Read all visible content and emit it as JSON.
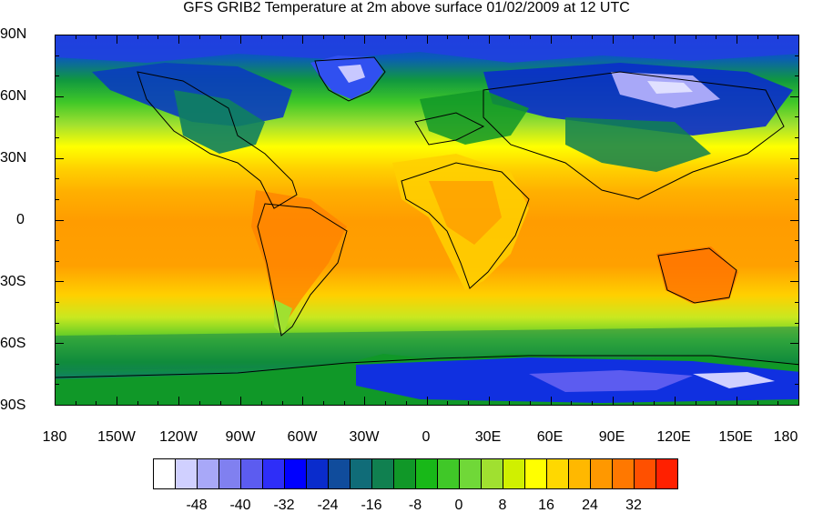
{
  "title": "GFS GRIB2 Temperature at 2m above surface 01/02/2009 at 12 UTC",
  "map": {
    "projection": "cylindrical-equidistant",
    "variable": "Temperature at 2m above surface",
    "lat_labels": [
      "90N",
      "60N",
      "30N",
      "0",
      "30S",
      "60S",
      "90S"
    ],
    "lon_labels": [
      "180",
      "150W",
      "120W",
      "90W",
      "60W",
      "30W",
      "0",
      "30E",
      "60E",
      "90E",
      "120E",
      "150E",
      "180"
    ]
  },
  "colorbar": {
    "colors": [
      "#ffffff",
      "#d0d0ff",
      "#a8a8f8",
      "#8080f0",
      "#5c5cf0",
      "#2e2ef8",
      "#0000ff",
      "#0a2ccc",
      "#104c9c",
      "#106c78",
      "#108050",
      "#109828",
      "#18b818",
      "#40c828",
      "#70d838",
      "#a0e030",
      "#d0f000",
      "#ffff00",
      "#ffd800",
      "#ffb800",
      "#ff9800",
      "#ff7800",
      "#ff5000",
      "#ff2000"
    ],
    "labels": [
      "-48",
      "-40",
      "-32",
      "-24",
      "-16",
      "-8",
      "0",
      "8",
      "16",
      "24",
      "32"
    ]
  }
}
